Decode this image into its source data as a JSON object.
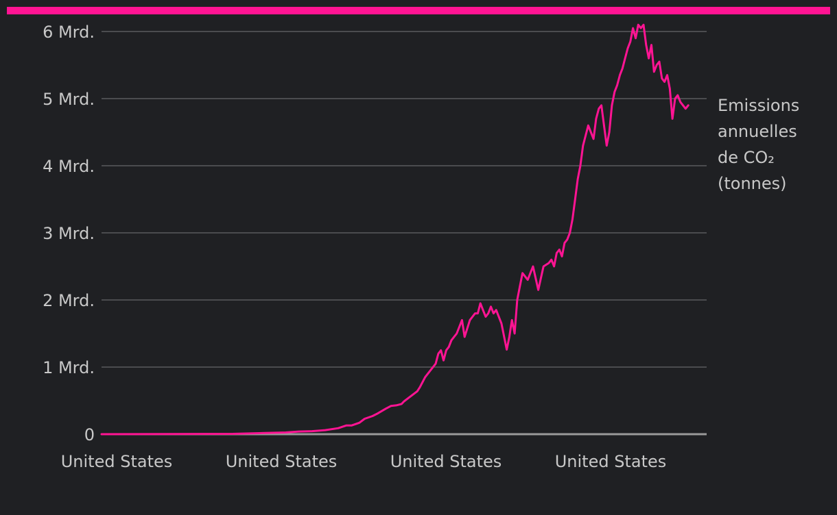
{
  "chart_data": {
    "type": "line",
    "title": "",
    "xlabel": "",
    "ylabel": "",
    "x_ticks": [
      "United States",
      "United States",
      "United States",
      "United States"
    ],
    "y_ticks": [
      "0",
      "1 Mrd.",
      "2 Mrd.",
      "3 Mrd.",
      "4 Mrd.",
      "5 Mrd.",
      "6 Mrd."
    ],
    "ylim": [
      0,
      6000000000
    ],
    "grid": true,
    "series_label_lines": [
      "Emissions",
      "annuelles",
      "de CO₂",
      "(tonnes)"
    ],
    "accent_color": "#ff1493",
    "series": [
      {
        "name": "Emissions annuelles de CO₂ (tonnes)",
        "color": "#ff1493",
        "x": [
          1800,
          1850,
          1860,
          1870,
          1875,
          1880,
          1885,
          1890,
          1893,
          1895,
          1898,
          1900,
          1903,
          1905,
          1908,
          1910,
          1912,
          1914,
          1915,
          1917,
          1918,
          1920,
          1921,
          1923,
          1924,
          1926,
          1927,
          1928,
          1929,
          1930,
          1931,
          1932,
          1933,
          1935,
          1937,
          1938,
          1940,
          1941,
          1942,
          1943,
          1944,
          1945,
          1946,
          1947,
          1948,
          1949,
          1950,
          1952,
          1954,
          1955,
          1956,
          1957,
          1958,
          1959,
          1960,
          1962,
          1964,
          1966,
          1968,
          1970,
          1971,
          1972,
          1973,
          1974,
          1975,
          1976,
          1977,
          1978,
          1979,
          1980,
          1981,
          1982,
          1983,
          1985,
          1987,
          1988,
          1989,
          1990,
          1991,
          1992,
          1993,
          1994,
          1995,
          1996,
          1997,
          1998,
          1999,
          2000,
          2001,
          2002,
          2003,
          2004,
          2005,
          2006,
          2007,
          2008,
          2009,
          2010,
          2011,
          2012,
          2013,
          2014,
          2015,
          2016,
          2017,
          2018,
          2019,
          2020,
          2021,
          2022,
          2023
        ],
        "values": [
          0,
          5000000,
          15000000,
          25000000,
          40000000,
          45000000,
          60000000,
          90000000,
          130000000,
          130000000,
          170000000,
          230000000,
          270000000,
          310000000,
          380000000,
          420000000,
          430000000,
          450000000,
          490000000,
          550000000,
          580000000,
          640000000,
          700000000,
          850000000,
          900000000,
          1000000000,
          1050000000,
          1200000000,
          1250000000,
          1100000000,
          1250000000,
          1300000000,
          1400000000,
          1500000000,
          1700000000,
          1450000000,
          1700000000,
          1750000000,
          1800000000,
          1800000000,
          1950000000,
          1850000000,
          1750000000,
          1800000000,
          1900000000,
          1800000000,
          1850000000,
          1650000000,
          1260000000,
          1450000000,
          1700000000,
          1500000000,
          2000000000,
          2200000000,
          2400000000,
          2300000000,
          2500000000,
          2150000000,
          2500000000,
          2550000000,
          2600000000,
          2500000000,
          2700000000,
          2750000000,
          2650000000,
          2850000000,
          2900000000,
          3000000000,
          3200000000,
          3500000000,
          3800000000,
          4000000000,
          4300000000,
          4600000000,
          4400000000,
          4700000000,
          4850000000,
          4900000000,
          4600000000,
          4300000000,
          4500000000,
          4900000000,
          5100000000,
          5200000000,
          5350000000,
          5450000000,
          5600000000,
          5750000000,
          5850000000,
          6050000000,
          5900000000,
          6100000000,
          6050000000,
          6100000000,
          5800000000,
          5600000000,
          5800000000,
          5400000000,
          5500000000,
          5550000000,
          5300000000,
          5250000000,
          5350000000,
          5150000000,
          4700000000,
          5000000000,
          5050000000,
          4950000000,
          4900000000,
          4850000000,
          4900000000
        ]
      }
    ]
  }
}
